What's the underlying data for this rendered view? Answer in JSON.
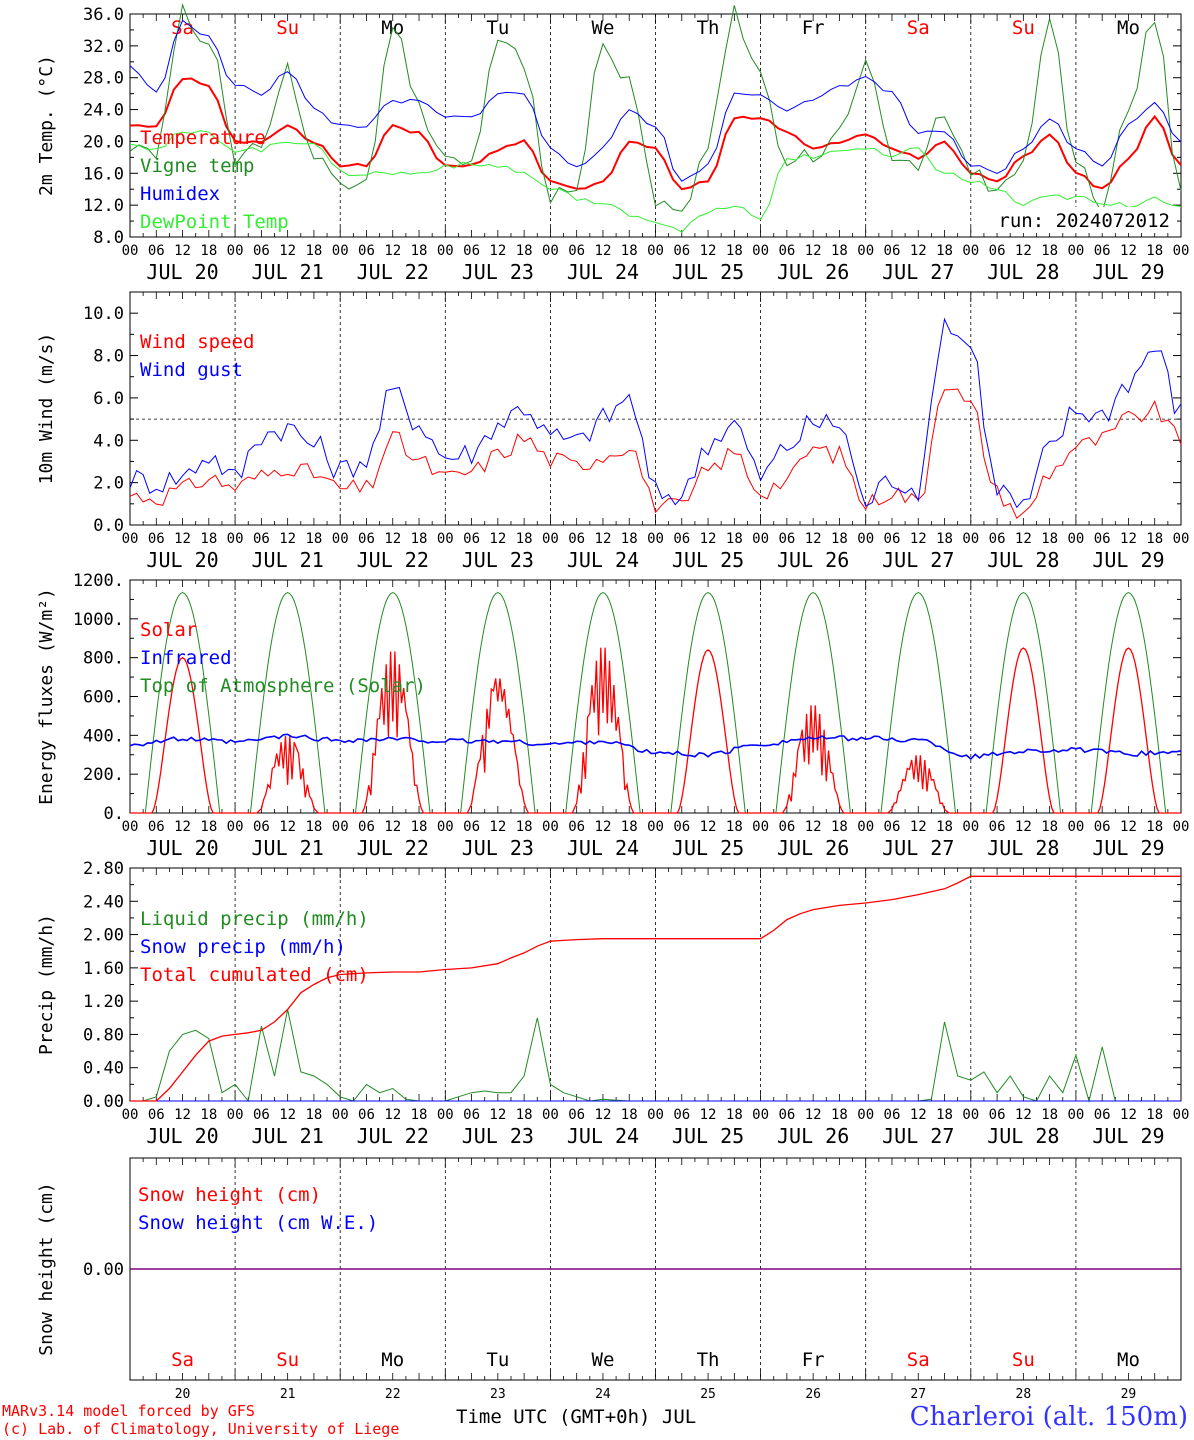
{
  "days": [
    "JUL 20",
    "JUL 21",
    "JUL 22",
    "JUL 23",
    "JUL 24",
    "JUL 25",
    "JUL 26",
    "JUL 27",
    "JUL 28",
    "JUL 29"
  ],
  "weekdays": [
    "Sa",
    "Su",
    "Mo",
    "Tu",
    "We",
    "Th",
    "Fr",
    "Sa",
    "Su",
    "Mo"
  ],
  "weekend_flags": [
    true,
    true,
    false,
    false,
    false,
    false,
    false,
    true,
    true,
    false
  ],
  "day_numbers": [
    "20",
    "21",
    "22",
    "23",
    "24",
    "25",
    "26",
    "27",
    "28",
    "29"
  ],
  "hour_ticks": [
    "00",
    "06",
    "12",
    "18"
  ],
  "final_tick": "00",
  "run_label": "run: 2024072012",
  "footer": {
    "model_line1": "MARv3.14 model forced by GFS",
    "model_line2": "(c) Lab. of Climatology, University of Liege",
    "xlabel": "Time UTC (GMT+0h) JUL",
    "station": "Charleroi (alt. 150m)"
  },
  "colors": {
    "red": "#ff0000",
    "green": "#228b22",
    "blue": "#0000ff",
    "lightgreen": "#33ee33",
    "purple": "#800080",
    "station": "#3333ff"
  },
  "chart_data": [
    {
      "type": "line",
      "ylabel": "2m Temp. (°C)",
      "yticks": [
        "36.0",
        "32.0",
        "28.0",
        "24.0",
        "20.0",
        "16.0",
        "12.0",
        "8.0"
      ],
      "ylim": [
        8,
        36
      ],
      "x_unit": "hours since JUL 20 00 UTC",
      "series": [
        {
          "name": "Temperature",
          "color": "#ff0000",
          "x": [
            0,
            6,
            12,
            18,
            24,
            30,
            36,
            42,
            48,
            54,
            60,
            66,
            72,
            78,
            84,
            90,
            96,
            102,
            108,
            114,
            120,
            126,
            132,
            138,
            144,
            150,
            156,
            162,
            168,
            174,
            180,
            186,
            192,
            198,
            204,
            210,
            216,
            222,
            228,
            234,
            240
          ],
          "y": [
            22,
            22,
            28,
            27,
            20,
            20,
            22,
            20,
            17,
            17,
            22,
            21,
            17,
            17,
            19,
            20,
            15,
            14,
            15,
            20,
            19,
            14,
            15,
            23,
            23,
            21,
            19,
            20,
            21,
            19,
            18,
            20,
            16,
            15,
            18,
            21,
            16,
            14,
            18,
            23,
            17
          ]
        },
        {
          "name": "Vigne temp",
          "color": "#228b22",
          "x": [
            0,
            6,
            12,
            18,
            24,
            30,
            36,
            42,
            48,
            54,
            60,
            66,
            72,
            78,
            84,
            90,
            96,
            102,
            108,
            114,
            120,
            126,
            132,
            138,
            144,
            150,
            156,
            162,
            168,
            174,
            180,
            186,
            192,
            198,
            204,
            210,
            216,
            222,
            228,
            234,
            240
          ],
          "y": [
            20,
            19,
            36,
            33,
            18,
            20,
            29,
            18,
            15,
            16,
            35,
            24,
            18,
            17,
            32,
            30,
            13,
            14,
            33,
            27,
            13,
            10,
            20,
            36,
            28,
            18,
            18,
            21,
            29,
            18,
            17,
            24,
            16,
            14,
            17,
            35,
            17,
            12,
            24,
            36,
            14
          ]
        },
        {
          "name": "Humidex",
          "color": "#0000ff",
          "x": [
            0,
            6,
            12,
            18,
            24,
            30,
            36,
            42,
            48,
            54,
            60,
            66,
            72,
            78,
            84,
            90,
            96,
            102,
            108,
            114,
            120,
            126,
            132,
            138,
            144,
            150,
            156,
            162,
            168,
            174,
            180,
            186,
            192,
            198,
            204,
            210,
            216,
            222,
            228,
            234,
            240
          ],
          "y": [
            29.5,
            26,
            35,
            33,
            27,
            26,
            29,
            24,
            22,
            22,
            25,
            25,
            23,
            23,
            26,
            26,
            19,
            17,
            19,
            24,
            22,
            15,
            17,
            26,
            26,
            24,
            25,
            27,
            28,
            26,
            21,
            21,
            17,
            16,
            19,
            23,
            19,
            17,
            22,
            25,
            20
          ]
        },
        {
          "name": "DewPoint Temp",
          "color": "#33ee33",
          "x": [
            0,
            6,
            12,
            18,
            24,
            30,
            36,
            42,
            48,
            54,
            60,
            66,
            72,
            78,
            84,
            90,
            96,
            102,
            108,
            114,
            120,
            126,
            132,
            138,
            144,
            150,
            156,
            162,
            168,
            174,
            180,
            186,
            192,
            198,
            204,
            210,
            216,
            222,
            228,
            234,
            240
          ],
          "y": [
            20,
            19,
            21,
            21,
            19,
            19,
            20,
            20,
            16,
            16,
            16,
            16,
            17,
            17,
            17,
            16,
            14,
            13,
            12,
            11,
            10,
            9,
            11,
            12,
            10,
            18,
            18,
            19,
            19,
            18,
            19,
            16,
            15,
            14,
            12,
            13,
            13,
            12,
            12,
            13,
            12
          ]
        }
      ]
    },
    {
      "type": "line",
      "ylabel": "10m Wind (m/s)",
      "yticks": [
        "10.0",
        "8.0",
        "6.0",
        "4.0",
        "2.0",
        "0.0"
      ],
      "ylim": [
        0,
        11
      ],
      "reference_line": 5,
      "series": [
        {
          "name": "Wind speed",
          "color": "#ff0000",
          "x": [
            0,
            6,
            12,
            18,
            24,
            30,
            36,
            42,
            48,
            54,
            60,
            66,
            72,
            78,
            84,
            90,
            96,
            102,
            108,
            114,
            120,
            126,
            132,
            138,
            144,
            150,
            156,
            162,
            168,
            174,
            180,
            186,
            192,
            198,
            204,
            210,
            216,
            222,
            228,
            234,
            240
          ],
          "y": [
            1.4,
            1.3,
            1.7,
            2.2,
            1.8,
            2.3,
            2.8,
            2.4,
            1.7,
            1.7,
            4.1,
            3.0,
            2.2,
            2.5,
            3.3,
            4.1,
            3.1,
            2.8,
            3.3,
            3.8,
            1.0,
            0.8,
            2.6,
            3.4,
            1.6,
            2.1,
            3.6,
            3.3,
            1.0,
            1.6,
            1.1,
            6.8,
            5.6,
            1.5,
            0.4,
            2.5,
            3.7,
            4.0,
            5.0,
            5.4,
            4.0
          ]
        },
        {
          "name": "Wind gust",
          "color": "#0000ff",
          "x": [
            0,
            6,
            12,
            18,
            24,
            30,
            36,
            42,
            48,
            54,
            60,
            66,
            72,
            78,
            84,
            90,
            96,
            102,
            108,
            114,
            120,
            126,
            132,
            138,
            144,
            150,
            156,
            162,
            168,
            174,
            180,
            186,
            192,
            198,
            204,
            210,
            216,
            222,
            228,
            234,
            240
          ],
          "y": [
            2.2,
            2.0,
            2.3,
            3.3,
            2.2,
            4.3,
            4.6,
            3.8,
            2.6,
            3.1,
            6.3,
            4.8,
            3.2,
            3.4,
            4.8,
            5.6,
            4.2,
            3.9,
            5.0,
            6.0,
            1.5,
            1.4,
            3.9,
            4.8,
            2.3,
            3.7,
            4.8,
            4.8,
            1.1,
            2.2,
            1.7,
            9.6,
            8.5,
            1.8,
            0.8,
            3.6,
            5.4,
            5.2,
            6.8,
            8.4,
            5.3
          ]
        }
      ]
    },
    {
      "type": "line",
      "ylabel": "Energy fluxes (W/m²)",
      "yticks": [
        "1200.",
        "1000.",
        "800.",
        "600.",
        "400.",
        "200.",
        "0."
      ],
      "ylim": [
        0,
        1200
      ],
      "series": [
        {
          "name": "Solar",
          "color": "#ff0000",
          "peaks": [
            800,
            400,
            840,
            700,
            860,
            840,
            560,
            300,
            850,
            850
          ]
        },
        {
          "name": "Infrared",
          "color": "#0000ff",
          "x": [
            0,
            12,
            24,
            36,
            48,
            60,
            72,
            84,
            96,
            108,
            120,
            132,
            144,
            156,
            168,
            180,
            192,
            204,
            216,
            228,
            240
          ],
          "y": [
            355,
            380,
            365,
            395,
            375,
            380,
            370,
            370,
            355,
            370,
            310,
            300,
            355,
            385,
            385,
            375,
            290,
            320,
            325,
            305,
            315
          ]
        },
        {
          "name": "Top of Atmosphere (Solar)",
          "color": "#228b22",
          "peak": 1135
        }
      ]
    },
    {
      "type": "line",
      "ylabel": "Precip (mm/h)",
      "yticks": [
        "2.80",
        "2.40",
        "2.00",
        "1.60",
        "1.20",
        "0.80",
        "0.40",
        "0.00"
      ],
      "ylim": [
        0,
        2.8
      ],
      "series": [
        {
          "name": "Liquid precip (mm/h)",
          "color": "#228b22",
          "x": [
            0,
            3,
            6,
            9,
            12,
            15,
            18,
            21,
            24,
            27,
            30,
            33,
            36,
            39,
            42,
            45,
            48,
            51,
            54,
            57,
            60,
            63,
            66,
            69,
            72,
            75,
            78,
            81,
            84,
            87,
            90,
            93,
            96,
            99,
            102,
            105,
            108,
            111,
            114,
            117,
            120,
            123,
            126,
            129,
            132,
            135,
            138,
            141,
            144,
            147,
            150,
            153,
            156,
            159,
            162,
            165,
            168,
            171,
            174,
            177,
            180,
            183,
            186,
            189,
            192,
            195,
            198,
            201,
            204,
            207,
            210,
            213,
            216,
            219,
            222,
            225,
            228,
            231,
            234,
            237,
            240
          ],
          "y": [
            0,
            0,
            0.05,
            0.6,
            0.8,
            0.85,
            0.75,
            0.1,
            0.2,
            0,
            0.9,
            0.3,
            1.1,
            0.35,
            0.3,
            0.2,
            0.05,
            0,
            0.2,
            0.1,
            0.15,
            0.02,
            0,
            0,
            0,
            0.05,
            0.1,
            0.12,
            0.1,
            0.1,
            0.3,
            1.0,
            0.2,
            0.1,
            0.05,
            0,
            0.02,
            0.01,
            0,
            0,
            0,
            0,
            0,
            0,
            0,
            0,
            0,
            0,
            0,
            0,
            0,
            0,
            0,
            0,
            0,
            0,
            0,
            0,
            0,
            0,
            0,
            0.02,
            0.95,
            0.3,
            0.25,
            0.35,
            0.1,
            0.3,
            0.05,
            0,
            0.3,
            0.1,
            0.55,
            0,
            0.65,
            0,
            0,
            0,
            0,
            0,
            0
          ]
        },
        {
          "name": "Snow precip (mm/h)",
          "color": "#0000ff",
          "x": [
            0,
            240
          ],
          "y": [
            0,
            0
          ]
        },
        {
          "name": "Total cumulated (cm)",
          "color": "#ff0000",
          "x": [
            0,
            6,
            9,
            12,
            15,
            18,
            21,
            24,
            27,
            30,
            33,
            36,
            39,
            42,
            45,
            48,
            54,
            60,
            66,
            72,
            78,
            84,
            87,
            90,
            93,
            96,
            99,
            102,
            108,
            114,
            120,
            126,
            132,
            138,
            144,
            147,
            150,
            153,
            156,
            162,
            168,
            174,
            180,
            186,
            189,
            192,
            195,
            198,
            204,
            210,
            216,
            222,
            228,
            234,
            240
          ],
          "y": [
            0,
            0,
            0.15,
            0.35,
            0.55,
            0.72,
            0.78,
            0.8,
            0.82,
            0.85,
            0.95,
            1.1,
            1.3,
            1.4,
            1.48,
            1.52,
            1.54,
            1.55,
            1.55,
            1.58,
            1.6,
            1.65,
            1.72,
            1.78,
            1.86,
            1.92,
            1.93,
            1.94,
            1.95,
            1.95,
            1.95,
            1.95,
            1.95,
            1.95,
            1.95,
            2.05,
            2.18,
            2.25,
            2.3,
            2.35,
            2.38,
            2.42,
            2.48,
            2.55,
            2.62,
            2.7,
            2.7,
            2.7,
            2.7,
            2.7,
            2.7,
            2.7,
            2.7,
            2.7,
            2.7
          ]
        }
      ]
    },
    {
      "type": "line",
      "ylabel": "Snow height (cm)",
      "yticks": [
        "0.00"
      ],
      "series": [
        {
          "name": "Snow height (cm)",
          "color": "#ff0000",
          "x": [
            0,
            240
          ],
          "y": [
            0,
            0
          ]
        },
        {
          "name": "Snow height (cm W.E.)",
          "color": "#0000ff",
          "x": [
            0,
            240
          ],
          "y": [
            0,
            0
          ]
        }
      ]
    }
  ]
}
